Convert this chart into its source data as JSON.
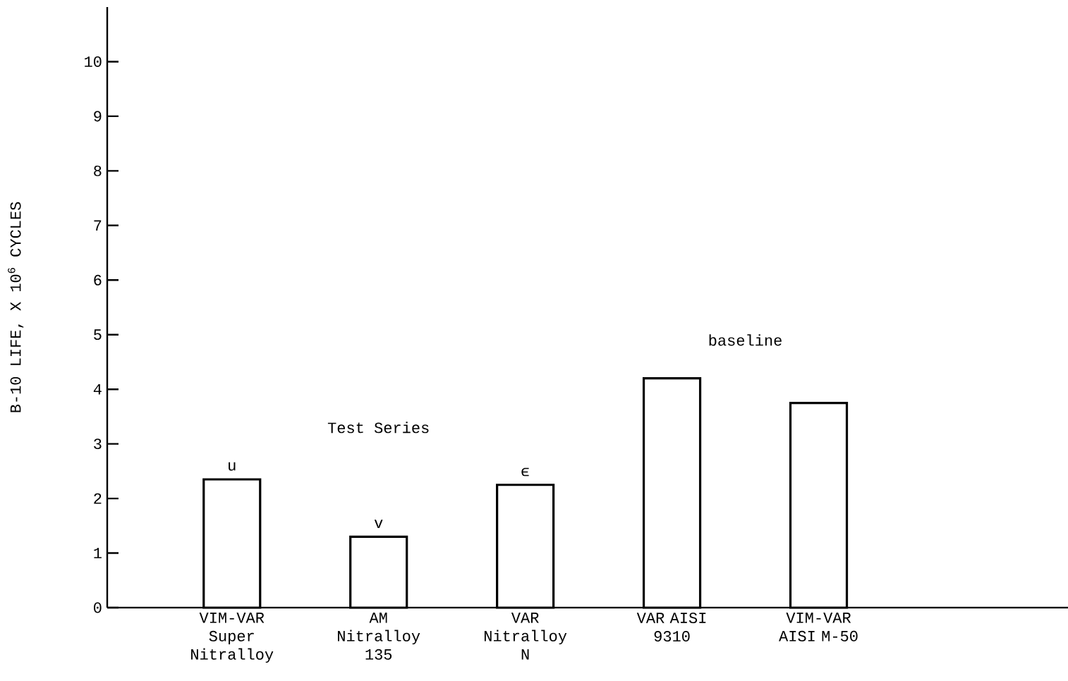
{
  "chart_data": {
    "type": "bar",
    "ylabel": "B-10 LIFE, X 10$^{6}$ CYCLES",
    "categories": [
      "VIM-VAR Super Nitralloy",
      "AM Nitralloy 135",
      "VAR Nitralloy N",
      "VAR AISI 9310",
      "VIM-VAR AISI M-50"
    ],
    "values": [
      2.35,
      1.3,
      2.25,
      4.2,
      3.75
    ],
    "color": "#000000",
    "ylim": [
      0,
      11
    ],
    "yticks": [
      0,
      1,
      2,
      3,
      4,
      5,
      6,
      7,
      8,
      9,
      10
    ],
    "annotations": [
      {
        "text": "u",
        "x": "VIM-VAR Super Nitralloy",
        "y": 2.35
      },
      {
        "text": "v",
        "x": "AM Nitralloy 135",
        "y": 1.3
      },
      {
        "text": "ϵ",
        "x": "VAR Nitralloy N",
        "y": 2.25
      },
      "Test Series",
      "baseline"
    ]
  }
}
